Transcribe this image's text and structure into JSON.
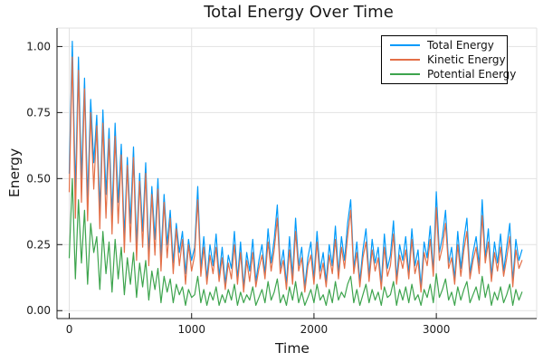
{
  "chart_data": {
    "type": "line",
    "title": "Total Energy Over Time",
    "xlabel": "Time",
    "ylabel": "Energy",
    "xlim": [
      -100,
      3820
    ],
    "ylim": [
      -0.03,
      1.07
    ],
    "xticks": [
      0,
      1000,
      2000,
      3000
    ],
    "xtick_labels": [
      "0",
      "1000",
      "2000",
      "3000"
    ],
    "yticks": [
      0,
      0.25,
      0.5,
      0.75,
      1.0
    ],
    "ytick_labels": [
      "0.00",
      "0.25",
      "0.50",
      "0.75",
      "1.00"
    ],
    "grid": true,
    "legend_position": "top-right",
    "x0": 0,
    "dx": 25,
    "style": {
      "background": "#FFFFFF",
      "grid_color": "#E2E2E2",
      "axis_color": "#1A1A1A",
      "legend_border_color": "#000000"
    },
    "series": [
      {
        "name": "Total Energy",
        "color": "#009AFA",
        "values": [
          0.52,
          1.02,
          0.45,
          0.96,
          0.5,
          0.88,
          0.42,
          0.8,
          0.56,
          0.74,
          0.38,
          0.76,
          0.44,
          0.69,
          0.36,
          0.71,
          0.41,
          0.63,
          0.28,
          0.58,
          0.33,
          0.62,
          0.25,
          0.52,
          0.3,
          0.56,
          0.22,
          0.47,
          0.27,
          0.5,
          0.2,
          0.44,
          0.25,
          0.38,
          0.18,
          0.33,
          0.22,
          0.3,
          0.14,
          0.27,
          0.19,
          0.24,
          0.47,
          0.16,
          0.28,
          0.12,
          0.25,
          0.17,
          0.29,
          0.13,
          0.24,
          0.1,
          0.21,
          0.16,
          0.3,
          0.12,
          0.26,
          0.09,
          0.22,
          0.15,
          0.27,
          0.11,
          0.19,
          0.25,
          0.14,
          0.31,
          0.18,
          0.27,
          0.4,
          0.16,
          0.23,
          0.1,
          0.28,
          0.13,
          0.35,
          0.17,
          0.24,
          0.09,
          0.2,
          0.26,
          0.12,
          0.3,
          0.15,
          0.22,
          0.11,
          0.25,
          0.17,
          0.32,
          0.14,
          0.28,
          0.19,
          0.33,
          0.42,
          0.16,
          0.26,
          0.11,
          0.23,
          0.31,
          0.13,
          0.27,
          0.18,
          0.24,
          0.1,
          0.29,
          0.16,
          0.21,
          0.34,
          0.12,
          0.25,
          0.19,
          0.28,
          0.14,
          0.31,
          0.17,
          0.23,
          0.09,
          0.26,
          0.2,
          0.32,
          0.15,
          0.45,
          0.22,
          0.28,
          0.38,
          0.18,
          0.24,
          0.12,
          0.3,
          0.16,
          0.27,
          0.35,
          0.14,
          0.22,
          0.28,
          0.17,
          0.42,
          0.2,
          0.31,
          0.13,
          0.26,
          0.18,
          0.29,
          0.15,
          0.24,
          0.33,
          0.11,
          0.27,
          0.19,
          0.23
        ]
      },
      {
        "name": "Kinetic Energy",
        "color": "#E36F47",
        "values": [
          0.45,
          0.96,
          0.35,
          0.91,
          0.41,
          0.84,
          0.34,
          0.75,
          0.46,
          0.7,
          0.31,
          0.71,
          0.35,
          0.65,
          0.29,
          0.66,
          0.33,
          0.59,
          0.22,
          0.55,
          0.26,
          0.58,
          0.19,
          0.49,
          0.24,
          0.52,
          0.17,
          0.44,
          0.21,
          0.46,
          0.15,
          0.41,
          0.2,
          0.35,
          0.14,
          0.31,
          0.17,
          0.27,
          0.1,
          0.25,
          0.15,
          0.21,
          0.42,
          0.13,
          0.24,
          0.1,
          0.21,
          0.14,
          0.24,
          0.11,
          0.2,
          0.08,
          0.18,
          0.12,
          0.25,
          0.1,
          0.22,
          0.07,
          0.19,
          0.11,
          0.22,
          0.09,
          0.16,
          0.21,
          0.12,
          0.26,
          0.15,
          0.23,
          0.35,
          0.14,
          0.19,
          0.08,
          0.23,
          0.1,
          0.3,
          0.15,
          0.2,
          0.07,
          0.17,
          0.21,
          0.1,
          0.26,
          0.12,
          0.18,
          0.09,
          0.21,
          0.14,
          0.27,
          0.12,
          0.24,
          0.16,
          0.28,
          0.38,
          0.14,
          0.22,
          0.09,
          0.2,
          0.26,
          0.11,
          0.23,
          0.15,
          0.2,
          0.08,
          0.24,
          0.13,
          0.17,
          0.29,
          0.1,
          0.21,
          0.16,
          0.23,
          0.12,
          0.27,
          0.14,
          0.19,
          0.07,
          0.22,
          0.17,
          0.27,
          0.13,
          0.39,
          0.19,
          0.24,
          0.33,
          0.16,
          0.2,
          0.1,
          0.25,
          0.13,
          0.23,
          0.3,
          0.12,
          0.19,
          0.24,
          0.14,
          0.36,
          0.18,
          0.26,
          0.11,
          0.22,
          0.15,
          0.24,
          0.13,
          0.2,
          0.28,
          0.09,
          0.23,
          0.16,
          0.19
        ]
      },
      {
        "name": "Potential Energy",
        "color": "#3DA44D",
        "values": [
          0.2,
          0.5,
          0.12,
          0.42,
          0.18,
          0.38,
          0.1,
          0.33,
          0.22,
          0.28,
          0.08,
          0.3,
          0.14,
          0.26,
          0.07,
          0.27,
          0.12,
          0.24,
          0.06,
          0.2,
          0.1,
          0.22,
          0.05,
          0.18,
          0.09,
          0.19,
          0.04,
          0.15,
          0.08,
          0.16,
          0.03,
          0.13,
          0.07,
          0.12,
          0.03,
          0.1,
          0.06,
          0.09,
          0.02,
          0.08,
          0.05,
          0.06,
          0.13,
          0.03,
          0.08,
          0.02,
          0.07,
          0.04,
          0.09,
          0.02,
          0.06,
          0.03,
          0.08,
          0.04,
          0.1,
          0.02,
          0.07,
          0.03,
          0.06,
          0.04,
          0.09,
          0.02,
          0.05,
          0.08,
          0.03,
          0.11,
          0.04,
          0.07,
          0.12,
          0.03,
          0.06,
          0.02,
          0.09,
          0.04,
          0.11,
          0.03,
          0.07,
          0.02,
          0.05,
          0.08,
          0.03,
          0.1,
          0.04,
          0.06,
          0.02,
          0.08,
          0.03,
          0.11,
          0.04,
          0.07,
          0.05,
          0.1,
          0.13,
          0.03,
          0.08,
          0.02,
          0.06,
          0.1,
          0.03,
          0.08,
          0.04,
          0.07,
          0.02,
          0.09,
          0.05,
          0.06,
          0.11,
          0.02,
          0.08,
          0.04,
          0.09,
          0.03,
          0.1,
          0.04,
          0.06,
          0.02,
          0.08,
          0.05,
          0.1,
          0.03,
          0.14,
          0.05,
          0.08,
          0.12,
          0.04,
          0.07,
          0.02,
          0.09,
          0.04,
          0.08,
          0.11,
          0.03,
          0.06,
          0.09,
          0.04,
          0.13,
          0.05,
          0.1,
          0.02,
          0.07,
          0.04,
          0.09,
          0.03,
          0.06,
          0.1,
          0.02,
          0.08,
          0.04,
          0.07
        ]
      }
    ]
  }
}
